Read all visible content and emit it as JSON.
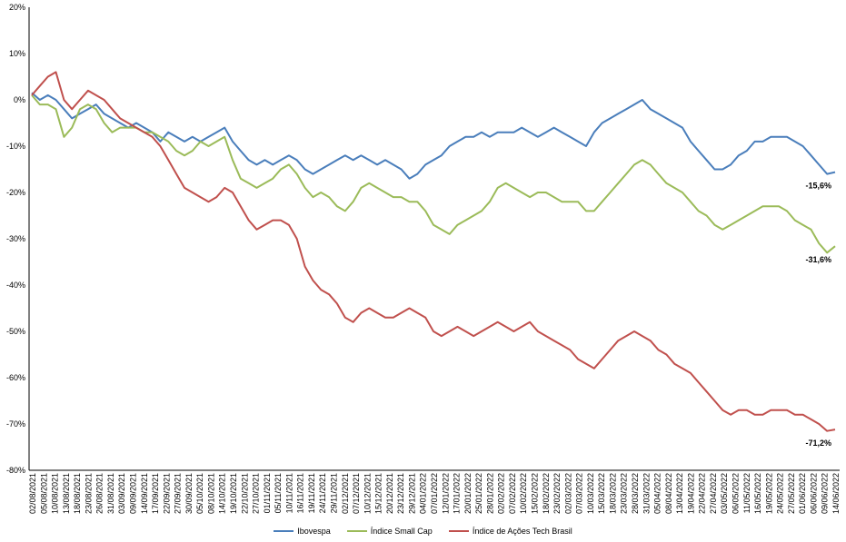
{
  "chart_data": {
    "type": "line",
    "ylim": [
      -80,
      20
    ],
    "y_ticks": [
      "20%",
      "10%",
      "0%",
      "-10%",
      "-20%",
      "-30%",
      "-40%",
      "-50%",
      "-60%",
      "-70%",
      "-80%"
    ],
    "grid": "none",
    "legend_position": "bottom",
    "x_start": "2021-08-02",
    "x_end": "2022-06-15",
    "x_tick_labels": [
      "02/08/2021",
      "05/08/2021",
      "10/08/2021",
      "13/08/2021",
      "18/08/2021",
      "23/08/2021",
      "26/08/2021",
      "31/08/2021",
      "03/09/2021",
      "09/09/2021",
      "14/09/2021",
      "17/09/2021",
      "22/09/2021",
      "27/09/2021",
      "30/09/2021",
      "05/10/2021",
      "08/10/2021",
      "14/10/2021",
      "19/10/2021",
      "22/10/2021",
      "27/10/2021",
      "01/11/2021",
      "05/11/2021",
      "10/11/2021",
      "16/11/2021",
      "19/11/2021",
      "24/11/2021",
      "29/11/2021",
      "02/12/2021",
      "07/12/2021",
      "10/12/2021",
      "15/12/2021",
      "20/12/2021",
      "23/12/2021",
      "29/12/2021",
      "04/01/2022",
      "07/01/2022",
      "12/01/2022",
      "17/01/2022",
      "20/01/2022",
      "25/01/2022",
      "28/01/2022",
      "02/02/2022",
      "07/02/2022",
      "10/02/2022",
      "15/02/2022",
      "18/02/2022",
      "23/02/2022",
      "02/03/2022",
      "07/03/2022",
      "10/03/2022",
      "15/03/2022",
      "18/03/2022",
      "23/03/2022",
      "28/03/2022",
      "31/03/2022",
      "05/04/2022",
      "08/04/2022",
      "13/04/2022",
      "19/04/2022",
      "22/04/2022",
      "27/04/2022",
      "03/05/2022",
      "06/05/2022",
      "11/05/2022",
      "16/05/2022",
      "19/05/2022",
      "24/05/2022",
      "27/05/2022",
      "01/06/2022",
      "06/06/2022",
      "09/06/2022",
      "14/06/2022"
    ],
    "series": [
      {
        "name": "Ibovespa",
        "color": "#4a7ebb",
        "end_label": "-15,6%",
        "points": [
          [
            0,
            1.5
          ],
          [
            3,
            0
          ],
          [
            6,
            1
          ],
          [
            9,
            0
          ],
          [
            12,
            -2
          ],
          [
            15,
            -4
          ],
          [
            18,
            -3
          ],
          [
            21,
            -2
          ],
          [
            24,
            -1
          ],
          [
            27,
            -3
          ],
          [
            30,
            -4
          ],
          [
            33,
            -5
          ],
          [
            36,
            -6
          ],
          [
            39,
            -5
          ],
          [
            42,
            -6
          ],
          [
            45,
            -7
          ],
          [
            48,
            -9
          ],
          [
            51,
            -7
          ],
          [
            54,
            -8
          ],
          [
            57,
            -9
          ],
          [
            60,
            -8
          ],
          [
            63,
            -9
          ],
          [
            66,
            -8
          ],
          [
            69,
            -7
          ],
          [
            72,
            -6
          ],
          [
            75,
            -9
          ],
          [
            78,
            -11
          ],
          [
            81,
            -13
          ],
          [
            84,
            -14
          ],
          [
            87,
            -13
          ],
          [
            90,
            -14
          ],
          [
            93,
            -13
          ],
          [
            96,
            -12
          ],
          [
            99,
            -13
          ],
          [
            102,
            -15
          ],
          [
            105,
            -16
          ],
          [
            108,
            -15
          ],
          [
            111,
            -14
          ],
          [
            114,
            -13
          ],
          [
            117,
            -12
          ],
          [
            120,
            -13
          ],
          [
            123,
            -12
          ],
          [
            126,
            -13
          ],
          [
            129,
            -14
          ],
          [
            132,
            -13
          ],
          [
            135,
            -14
          ],
          [
            138,
            -15
          ],
          [
            141,
            -17
          ],
          [
            144,
            -16
          ],
          [
            147,
            -14
          ],
          [
            150,
            -13
          ],
          [
            153,
            -12
          ],
          [
            156,
            -10
          ],
          [
            159,
            -9
          ],
          [
            162,
            -8
          ],
          [
            165,
            -8
          ],
          [
            168,
            -7
          ],
          [
            171,
            -8
          ],
          [
            174,
            -7
          ],
          [
            177,
            -7
          ],
          [
            180,
            -7
          ],
          [
            183,
            -6
          ],
          [
            186,
            -7
          ],
          [
            189,
            -8
          ],
          [
            192,
            -7
          ],
          [
            195,
            -6
          ],
          [
            198,
            -7
          ],
          [
            201,
            -8
          ],
          [
            204,
            -9
          ],
          [
            207,
            -10
          ],
          [
            210,
            -7
          ],
          [
            213,
            -5
          ],
          [
            216,
            -4
          ],
          [
            219,
            -3
          ],
          [
            222,
            -2
          ],
          [
            225,
            -1
          ],
          [
            228,
            0
          ],
          [
            231,
            -2
          ],
          [
            234,
            -3
          ],
          [
            237,
            -4
          ],
          [
            240,
            -5
          ],
          [
            243,
            -6
          ],
          [
            246,
            -9
          ],
          [
            249,
            -11
          ],
          [
            252,
            -13
          ],
          [
            255,
            -15
          ],
          [
            258,
            -15
          ],
          [
            261,
            -14
          ],
          [
            264,
            -12
          ],
          [
            267,
            -11
          ],
          [
            270,
            -9
          ],
          [
            273,
            -9
          ],
          [
            276,
            -8
          ],
          [
            279,
            -8
          ],
          [
            282,
            -8
          ],
          [
            285,
            -9
          ],
          [
            288,
            -10
          ],
          [
            291,
            -12
          ],
          [
            294,
            -14
          ],
          [
            297,
            -16
          ],
          [
            300,
            -15.6
          ]
        ]
      },
      {
        "name": "Índice Small Cap",
        "color": "#9bbb59",
        "end_label": "-31,6%",
        "points": [
          [
            0,
            1
          ],
          [
            3,
            -1
          ],
          [
            6,
            -1
          ],
          [
            9,
            -2
          ],
          [
            12,
            -8
          ],
          [
            15,
            -6
          ],
          [
            18,
            -2
          ],
          [
            21,
            -1
          ],
          [
            24,
            -2
          ],
          [
            27,
            -5
          ],
          [
            30,
            -7
          ],
          [
            33,
            -6
          ],
          [
            36,
            -6
          ],
          [
            39,
            -6
          ],
          [
            42,
            -7
          ],
          [
            45,
            -7
          ],
          [
            48,
            -8
          ],
          [
            51,
            -9
          ],
          [
            54,
            -11
          ],
          [
            57,
            -12
          ],
          [
            60,
            -11
          ],
          [
            63,
            -9
          ],
          [
            66,
            -10
          ],
          [
            69,
            -9
          ],
          [
            72,
            -8
          ],
          [
            75,
            -13
          ],
          [
            78,
            -17
          ],
          [
            81,
            -18
          ],
          [
            84,
            -19
          ],
          [
            87,
            -18
          ],
          [
            90,
            -17
          ],
          [
            93,
            -15
          ],
          [
            96,
            -14
          ],
          [
            99,
            -16
          ],
          [
            102,
            -19
          ],
          [
            105,
            -21
          ],
          [
            108,
            -20
          ],
          [
            111,
            -21
          ],
          [
            114,
            -23
          ],
          [
            117,
            -24
          ],
          [
            120,
            -22
          ],
          [
            123,
            -19
          ],
          [
            126,
            -18
          ],
          [
            129,
            -19
          ],
          [
            132,
            -20
          ],
          [
            135,
            -21
          ],
          [
            138,
            -21
          ],
          [
            141,
            -22
          ],
          [
            144,
            -22
          ],
          [
            147,
            -24
          ],
          [
            150,
            -27
          ],
          [
            153,
            -28
          ],
          [
            156,
            -29
          ],
          [
            159,
            -27
          ],
          [
            162,
            -26
          ],
          [
            165,
            -25
          ],
          [
            168,
            -24
          ],
          [
            171,
            -22
          ],
          [
            174,
            -19
          ],
          [
            177,
            -18
          ],
          [
            180,
            -19
          ],
          [
            183,
            -20
          ],
          [
            186,
            -21
          ],
          [
            189,
            -20
          ],
          [
            192,
            -20
          ],
          [
            195,
            -21
          ],
          [
            198,
            -22
          ],
          [
            201,
            -22
          ],
          [
            204,
            -22
          ],
          [
            207,
            -24
          ],
          [
            210,
            -24
          ],
          [
            213,
            -22
          ],
          [
            216,
            -20
          ],
          [
            219,
            -18
          ],
          [
            222,
            -16
          ],
          [
            225,
            -14
          ],
          [
            228,
            -13
          ],
          [
            231,
            -14
          ],
          [
            234,
            -16
          ],
          [
            237,
            -18
          ],
          [
            240,
            -19
          ],
          [
            243,
            -20
          ],
          [
            246,
            -22
          ],
          [
            249,
            -24
          ],
          [
            252,
            -25
          ],
          [
            255,
            -27
          ],
          [
            258,
            -28
          ],
          [
            261,
            -27
          ],
          [
            264,
            -26
          ],
          [
            267,
            -25
          ],
          [
            270,
            -24
          ],
          [
            273,
            -23
          ],
          [
            276,
            -23
          ],
          [
            279,
            -23
          ],
          [
            282,
            -24
          ],
          [
            285,
            -26
          ],
          [
            288,
            -27
          ],
          [
            291,
            -28
          ],
          [
            294,
            -31
          ],
          [
            297,
            -33
          ],
          [
            300,
            -31.6
          ]
        ]
      },
      {
        "name": "Índice de Ações Tech Brasil",
        "color": "#c0504d",
        "end_label": "-71,2%",
        "points": [
          [
            0,
            1
          ],
          [
            3,
            3
          ],
          [
            6,
            5
          ],
          [
            9,
            6
          ],
          [
            12,
            0
          ],
          [
            15,
            -2
          ],
          [
            18,
            0
          ],
          [
            21,
            2
          ],
          [
            24,
            1
          ],
          [
            27,
            0
          ],
          [
            30,
            -2
          ],
          [
            33,
            -4
          ],
          [
            36,
            -5
          ],
          [
            39,
            -6
          ],
          [
            42,
            -7
          ],
          [
            45,
            -8
          ],
          [
            48,
            -10
          ],
          [
            51,
            -13
          ],
          [
            54,
            -16
          ],
          [
            57,
            -19
          ],
          [
            60,
            -20
          ],
          [
            63,
            -21
          ],
          [
            66,
            -22
          ],
          [
            69,
            -21
          ],
          [
            72,
            -19
          ],
          [
            75,
            -20
          ],
          [
            78,
            -23
          ],
          [
            81,
            -26
          ],
          [
            84,
            -28
          ],
          [
            87,
            -27
          ],
          [
            90,
            -26
          ],
          [
            93,
            -26
          ],
          [
            96,
            -27
          ],
          [
            99,
            -30
          ],
          [
            102,
            -36
          ],
          [
            105,
            -39
          ],
          [
            108,
            -41
          ],
          [
            111,
            -42
          ],
          [
            114,
            -44
          ],
          [
            117,
            -47
          ],
          [
            120,
            -48
          ],
          [
            123,
            -46
          ],
          [
            126,
            -45
          ],
          [
            129,
            -46
          ],
          [
            132,
            -47
          ],
          [
            135,
            -47
          ],
          [
            138,
            -46
          ],
          [
            141,
            -45
          ],
          [
            144,
            -46
          ],
          [
            147,
            -47
          ],
          [
            150,
            -50
          ],
          [
            153,
            -51
          ],
          [
            156,
            -50
          ],
          [
            159,
            -49
          ],
          [
            162,
            -50
          ],
          [
            165,
            -51
          ],
          [
            168,
            -50
          ],
          [
            171,
            -49
          ],
          [
            174,
            -48
          ],
          [
            177,
            -49
          ],
          [
            180,
            -50
          ],
          [
            183,
            -49
          ],
          [
            186,
            -48
          ],
          [
            189,
            -50
          ],
          [
            192,
            -51
          ],
          [
            195,
            -52
          ],
          [
            198,
            -53
          ],
          [
            201,
            -54
          ],
          [
            204,
            -56
          ],
          [
            207,
            -57
          ],
          [
            210,
            -58
          ],
          [
            213,
            -56
          ],
          [
            216,
            -54
          ],
          [
            219,
            -52
          ],
          [
            222,
            -51
          ],
          [
            225,
            -50
          ],
          [
            228,
            -51
          ],
          [
            231,
            -52
          ],
          [
            234,
            -54
          ],
          [
            237,
            -55
          ],
          [
            240,
            -57
          ],
          [
            243,
            -58
          ],
          [
            246,
            -59
          ],
          [
            249,
            -61
          ],
          [
            252,
            -63
          ],
          [
            255,
            -65
          ],
          [
            258,
            -67
          ],
          [
            261,
            -68
          ],
          [
            264,
            -67
          ],
          [
            267,
            -67
          ],
          [
            270,
            -68
          ],
          [
            273,
            -68
          ],
          [
            276,
            -67
          ],
          [
            279,
            -67
          ],
          [
            282,
            -67
          ],
          [
            285,
            -68
          ],
          [
            288,
            -68
          ],
          [
            291,
            -69
          ],
          [
            294,
            -70
          ],
          [
            297,
            -71.5
          ],
          [
            300,
            -71.2
          ]
        ]
      }
    ]
  }
}
